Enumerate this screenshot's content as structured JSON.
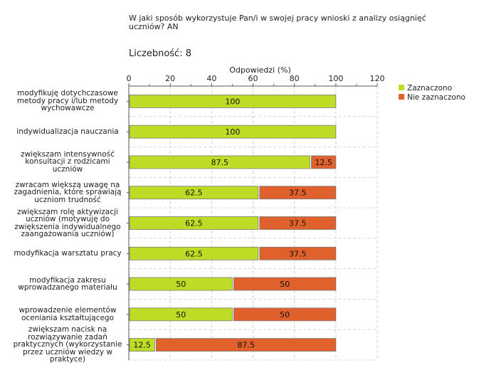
{
  "question": "W jaki sposób wykorzystuje Pan/i w swojej pracy wnioski z analizy osiągnięć uczniów? AN",
  "count_label": "Liczebność:",
  "count_value": "8",
  "colors": {
    "selected": "#bedc26",
    "not_selected": "#e0612c"
  },
  "chart_data": {
    "type": "bar",
    "orientation": "horizontal",
    "stacked": true,
    "title": "",
    "xlabel": "Odpowiedzi (%)",
    "xlim": [
      0,
      120
    ],
    "xticks": [
      0,
      20,
      40,
      60,
      80,
      100,
      120
    ],
    "categories": [
      "modyfikuję dotychczasowe metody pracy i/lub metody wychowawcze",
      "indywidualizacja nauczania",
      "zwiększam intensywność konsultacji z rodzicami uczniów",
      "zwracam większą uwagę na zagadnienia, które sprawiają uczniom trudność",
      "zwiększam rolę aktywizacji uczniów (motywuję do zwiększenia indywidualnego zaangażowania uczniów)",
      "modyfikacja warsztatu pracy",
      "modyfikacja zakresu wprowadzanego materiału",
      "wprowadzenie elementów oceniania kształtującego",
      "zwiększam nacisk na rozwiązywanie zadań praktycznych (wykorzystanie przez uczniów wiedzy w praktyce)"
    ],
    "series": [
      {
        "name": "Zaznaczono",
        "values": [
          100,
          100,
          87.5,
          62.5,
          62.5,
          62.5,
          50,
          50,
          12.5
        ]
      },
      {
        "name": "Nie zaznaczono",
        "values": [
          0,
          0,
          12.5,
          37.5,
          37.5,
          37.5,
          50,
          50,
          87.5
        ]
      }
    ],
    "legend_position": "right"
  }
}
